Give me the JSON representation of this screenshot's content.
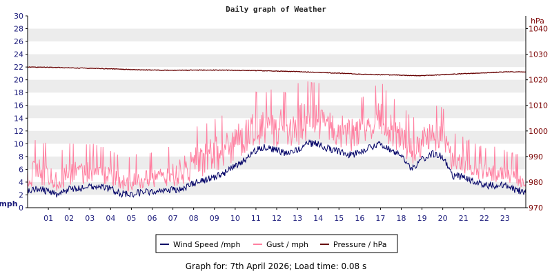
{
  "chart_data": {
    "type": "line",
    "title": "Daily graph of Weather",
    "y_left": {
      "unit": "mph",
      "range": [
        0,
        30
      ],
      "ticks": [
        0,
        2,
        4,
        6,
        8,
        10,
        12,
        14,
        16,
        18,
        20,
        22,
        24,
        26,
        28,
        30
      ]
    },
    "y_right": {
      "unit": "hPa",
      "range": [
        970,
        1045
      ],
      "ticks": [
        970,
        980,
        990,
        1000,
        1010,
        1020,
        1030,
        1040
      ]
    },
    "x": {
      "range": [
        0,
        24
      ],
      "tick_labels": [
        "01",
        "02",
        "03",
        "04",
        "05",
        "06",
        "07",
        "08",
        "09",
        "10",
        "11",
        "12",
        "13",
        "14",
        "15",
        "16",
        "17",
        "18",
        "19",
        "20",
        "21",
        "22",
        "23"
      ]
    },
    "grid": "horizontal alternating bands",
    "legend_position": "bottom",
    "series": [
      {
        "name": "Wind Speed /mph",
        "axis": "left",
        "color": "#000066",
        "hours": [
          0,
          0.5,
          1,
          1.5,
          2,
          2.5,
          3,
          3.5,
          4,
          4.5,
          5,
          5.5,
          6,
          6.5,
          7,
          7.5,
          8,
          8.5,
          9,
          9.5,
          10,
          10.5,
          11,
          11.5,
          12,
          12.5,
          13,
          13.5,
          14,
          14.5,
          15,
          15.5,
          16,
          16.5,
          17,
          17.5,
          18,
          18.5,
          19,
          19.5,
          20,
          20.5,
          21,
          21.5,
          22,
          22.5,
          23,
          23.5,
          24
        ],
        "values": [
          2.5,
          3.0,
          2.5,
          2.0,
          3.0,
          3.0,
          3.5,
          3.2,
          3.0,
          2.2,
          2.0,
          2.5,
          2.5,
          2.8,
          2.8,
          3.0,
          3.8,
          4.2,
          4.8,
          5.5,
          6.5,
          7.5,
          9.0,
          9.5,
          9.0,
          8.5,
          9.0,
          10.0,
          10.0,
          9.2,
          8.8,
          8.3,
          8.5,
          9.5,
          10.0,
          9.0,
          8.0,
          6.0,
          7.5,
          8.5,
          8.0,
          5.0,
          4.8,
          4.0,
          3.5,
          3.5,
          3.5,
          2.8,
          2.5
        ]
      },
      {
        "name": "Gust / mph",
        "axis": "left",
        "color": "#ff7fa0",
        "hours": [
          0,
          0.5,
          1,
          1.5,
          2,
          2.5,
          3,
          3.5,
          4,
          4.5,
          5,
          5.5,
          6,
          6.5,
          7,
          7.5,
          8,
          8.5,
          9,
          9.5,
          10,
          10.5,
          11,
          11.5,
          12,
          12.5,
          13,
          13.5,
          14,
          14.5,
          15,
          15.5,
          16,
          16.5,
          17,
          17.5,
          18,
          18.5,
          19,
          19.5,
          20,
          20.5,
          21,
          21.5,
          22,
          22.5,
          23,
          23.5,
          24
        ],
        "values": [
          6.0,
          7.0,
          6.0,
          5.0,
          6.5,
          6.5,
          6.5,
          6.0,
          5.5,
          4.5,
          4.5,
          5.0,
          5.0,
          5.5,
          6.0,
          7.0,
          8.5,
          9.0,
          10.0,
          10.5,
          11.5,
          13.0,
          14.0,
          14.0,
          14.5,
          14.0,
          15.0,
          15.5,
          15.5,
          14.0,
          13.5,
          13.0,
          13.0,
          14.5,
          15.5,
          13.5,
          12.5,
          10.0,
          11.5,
          12.5,
          12.0,
          8.0,
          7.5,
          6.5,
          6.0,
          6.0,
          5.5,
          5.0,
          5.0
        ]
      },
      {
        "name": "Pressure / hPa",
        "axis": "right",
        "color": "#660000",
        "hours": [
          0,
          1,
          2,
          3,
          4,
          5,
          6,
          7,
          8,
          9,
          10,
          11,
          12,
          13,
          14,
          15,
          16,
          17,
          18,
          19,
          20,
          21,
          22,
          23,
          24
        ],
        "values": [
          1025.0,
          1024.9,
          1024.7,
          1024.5,
          1024.3,
          1024.0,
          1023.8,
          1023.7,
          1023.8,
          1023.8,
          1023.7,
          1023.6,
          1023.4,
          1023.2,
          1022.9,
          1022.6,
          1022.2,
          1022.0,
          1021.8,
          1021.6,
          1022.0,
          1022.4,
          1022.7,
          1023.1,
          1023.1
        ]
      }
    ]
  },
  "footer": "Graph for: 7th April 2026; Load time: 0.08 s"
}
